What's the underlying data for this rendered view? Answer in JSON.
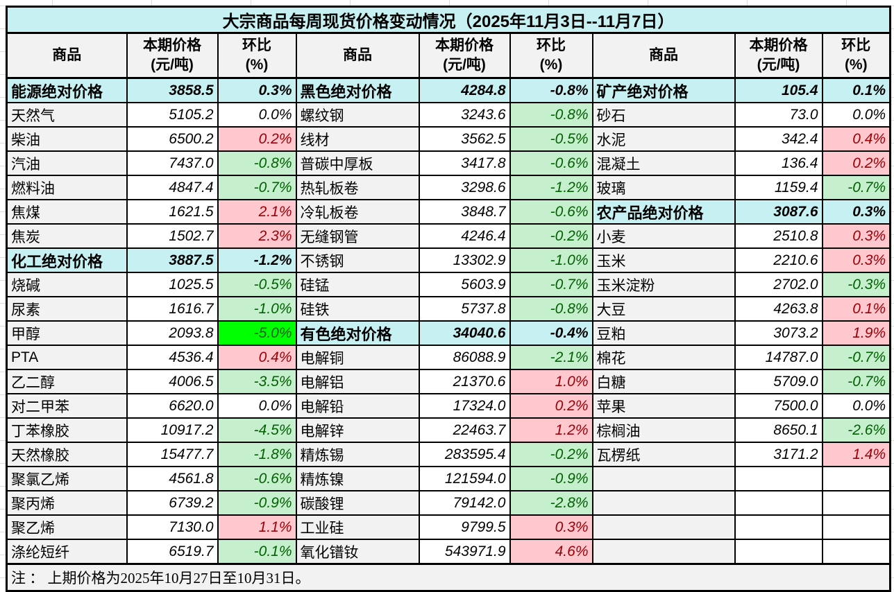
{
  "title": "大宗商品每周现货价格变动情况（2025年11月3日--11月7日）",
  "note": "注 ： 上期价格为2025年10月27日至10月31日。",
  "header": {
    "product": "商品",
    "price_line1": "本期价格",
    "price_line2": "(元/吨)",
    "change_line1": "环比",
    "change_line2": "(%)"
  },
  "colors": {
    "category_bg": "#c6f0f2",
    "name_bg": "#f2f2f2",
    "increase_bg": "#ffc7ce",
    "increase_text": "#9c0006",
    "decrease_bg": "#c6efce",
    "decrease_text": "#006100",
    "big_decrease_bg": "#00ff00",
    "border": "#000000"
  },
  "table": {
    "rows": [
      {
        "cells": [
          {
            "v": "能源绝对价格",
            "c": "cat"
          },
          {
            "v": "3858.5",
            "c": "cnum"
          },
          {
            "v": "0.3%",
            "c": "cpct"
          },
          {
            "v": "黑色绝对价格",
            "c": "cat"
          },
          {
            "v": "4284.8",
            "c": "cnum"
          },
          {
            "v": "-0.8%",
            "c": "cpct"
          },
          {
            "v": "矿产绝对价格",
            "c": "cat"
          },
          {
            "v": "105.4",
            "c": "cnum"
          },
          {
            "v": "0.1%",
            "c": "cpct"
          }
        ]
      },
      {
        "cells": [
          {
            "v": "天然气",
            "c": "name"
          },
          {
            "v": "5105.2",
            "c": "num"
          },
          {
            "v": "0.0%",
            "c": "flat"
          },
          {
            "v": "螺纹钢",
            "c": "name"
          },
          {
            "v": "3243.6",
            "c": "num"
          },
          {
            "v": "-0.8%",
            "c": "down"
          },
          {
            "v": "砂石",
            "c": "name"
          },
          {
            "v": "73.0",
            "c": "num"
          },
          {
            "v": "0.0%",
            "c": "flat"
          }
        ]
      },
      {
        "cells": [
          {
            "v": "柴油",
            "c": "name"
          },
          {
            "v": "6500.2",
            "c": "num"
          },
          {
            "v": "0.2%",
            "c": "up"
          },
          {
            "v": "线材",
            "c": "name"
          },
          {
            "v": "3562.5",
            "c": "num"
          },
          {
            "v": "-0.5%",
            "c": "down"
          },
          {
            "v": "水泥",
            "c": "name"
          },
          {
            "v": "342.4",
            "c": "num"
          },
          {
            "v": "0.4%",
            "c": "up"
          }
        ]
      },
      {
        "cells": [
          {
            "v": "汽油",
            "c": "name"
          },
          {
            "v": "7437.0",
            "c": "num"
          },
          {
            "v": "-0.8%",
            "c": "down"
          },
          {
            "v": "普碳中厚板",
            "c": "name"
          },
          {
            "v": "3417.8",
            "c": "num"
          },
          {
            "v": "-0.6%",
            "c": "down"
          },
          {
            "v": "混凝土",
            "c": "name"
          },
          {
            "v": "136.4",
            "c": "num"
          },
          {
            "v": "0.2%",
            "c": "up"
          }
        ]
      },
      {
        "cells": [
          {
            "v": "燃料油",
            "c": "name"
          },
          {
            "v": "4847.4",
            "c": "num"
          },
          {
            "v": "-0.7%",
            "c": "down"
          },
          {
            "v": "热轧板卷",
            "c": "name"
          },
          {
            "v": "3298.6",
            "c": "num"
          },
          {
            "v": "-1.2%",
            "c": "down"
          },
          {
            "v": "玻璃",
            "c": "name"
          },
          {
            "v": "1159.4",
            "c": "num"
          },
          {
            "v": "-0.7%",
            "c": "down"
          }
        ]
      },
      {
        "cells": [
          {
            "v": "焦煤",
            "c": "name"
          },
          {
            "v": "1621.5",
            "c": "num"
          },
          {
            "v": "2.1%",
            "c": "up"
          },
          {
            "v": "冷轧板卷",
            "c": "name"
          },
          {
            "v": "3848.7",
            "c": "num"
          },
          {
            "v": "-0.6%",
            "c": "down"
          },
          {
            "v": "农产品绝对价格",
            "c": "cat"
          },
          {
            "v": "3087.6",
            "c": "cnum"
          },
          {
            "v": "0.3%",
            "c": "cpct"
          }
        ]
      },
      {
        "cells": [
          {
            "v": "焦炭",
            "c": "name"
          },
          {
            "v": "1502.7",
            "c": "num"
          },
          {
            "v": "2.3%",
            "c": "up"
          },
          {
            "v": "无缝钢管",
            "c": "name"
          },
          {
            "v": "4246.4",
            "c": "num"
          },
          {
            "v": "-0.2%",
            "c": "down"
          },
          {
            "v": "小麦",
            "c": "name"
          },
          {
            "v": "2510.8",
            "c": "num"
          },
          {
            "v": "0.3%",
            "c": "up"
          }
        ]
      },
      {
        "cells": [
          {
            "v": "化工绝对价格",
            "c": "cat"
          },
          {
            "v": "3887.5",
            "c": "cnum"
          },
          {
            "v": "-1.2%",
            "c": "cpct"
          },
          {
            "v": "不锈钢",
            "c": "name"
          },
          {
            "v": "13302.9",
            "c": "num"
          },
          {
            "v": "-1.0%",
            "c": "down"
          },
          {
            "v": "玉米",
            "c": "name"
          },
          {
            "v": "2210.6",
            "c": "num"
          },
          {
            "v": "0.3%",
            "c": "up"
          }
        ]
      },
      {
        "cells": [
          {
            "v": "烧碱",
            "c": "name"
          },
          {
            "v": "1025.5",
            "c": "num"
          },
          {
            "v": "-0.5%",
            "c": "down"
          },
          {
            "v": "硅锰",
            "c": "name"
          },
          {
            "v": "5603.9",
            "c": "num"
          },
          {
            "v": "-0.7%",
            "c": "down"
          },
          {
            "v": "玉米淀粉",
            "c": "name"
          },
          {
            "v": "2702.0",
            "c": "num"
          },
          {
            "v": "-0.3%",
            "c": "down"
          }
        ]
      },
      {
        "cells": [
          {
            "v": "尿素",
            "c": "name"
          },
          {
            "v": "1616.7",
            "c": "num"
          },
          {
            "v": "-1.0%",
            "c": "down"
          },
          {
            "v": "硅铁",
            "c": "name"
          },
          {
            "v": "5737.8",
            "c": "num"
          },
          {
            "v": "-0.8%",
            "c": "down"
          },
          {
            "v": "大豆",
            "c": "name"
          },
          {
            "v": "4263.8",
            "c": "num"
          },
          {
            "v": "0.1%",
            "c": "up"
          }
        ]
      },
      {
        "cells": [
          {
            "v": "甲醇",
            "c": "name"
          },
          {
            "v": "2093.8",
            "c": "num"
          },
          {
            "v": "-5.0%",
            "c": "big"
          },
          {
            "v": "有色绝对价格",
            "c": "cat"
          },
          {
            "v": "34040.6",
            "c": "cnum"
          },
          {
            "v": "-0.4%",
            "c": "cpct"
          },
          {
            "v": "豆粕",
            "c": "name"
          },
          {
            "v": "3073.2",
            "c": "num"
          },
          {
            "v": "1.9%",
            "c": "up"
          }
        ]
      },
      {
        "cells": [
          {
            "v": "PTA",
            "c": "name"
          },
          {
            "v": "4536.4",
            "c": "num"
          },
          {
            "v": "0.4%",
            "c": "up"
          },
          {
            "v": "电解铜",
            "c": "name"
          },
          {
            "v": "86088.9",
            "c": "num"
          },
          {
            "v": "-2.1%",
            "c": "down"
          },
          {
            "v": "棉花",
            "c": "name"
          },
          {
            "v": "14787.0",
            "c": "num"
          },
          {
            "v": "-0.7%",
            "c": "down"
          }
        ]
      },
      {
        "cells": [
          {
            "v": "乙二醇",
            "c": "name"
          },
          {
            "v": "4006.5",
            "c": "num"
          },
          {
            "v": "-3.5%",
            "c": "down"
          },
          {
            "v": "电解铝",
            "c": "name"
          },
          {
            "v": "21370.6",
            "c": "num"
          },
          {
            "v": "1.0%",
            "c": "up"
          },
          {
            "v": "白糖",
            "c": "name"
          },
          {
            "v": "5709.0",
            "c": "num"
          },
          {
            "v": "-0.7%",
            "c": "down"
          }
        ]
      },
      {
        "cells": [
          {
            "v": "对二甲苯",
            "c": "name"
          },
          {
            "v": "6620.0",
            "c": "num"
          },
          {
            "v": "0.0%",
            "c": "flat"
          },
          {
            "v": "电解铅",
            "c": "name"
          },
          {
            "v": "17324.0",
            "c": "num"
          },
          {
            "v": "0.2%",
            "c": "up"
          },
          {
            "v": "苹果",
            "c": "name"
          },
          {
            "v": "7500.0",
            "c": "num"
          },
          {
            "v": "0.0%",
            "c": "flat"
          }
        ]
      },
      {
        "cells": [
          {
            "v": "丁苯橡胶",
            "c": "name"
          },
          {
            "v": "10917.2",
            "c": "num"
          },
          {
            "v": "-4.5%",
            "c": "down"
          },
          {
            "v": "电解锌",
            "c": "name"
          },
          {
            "v": "22463.7",
            "c": "num"
          },
          {
            "v": "1.2%",
            "c": "up"
          },
          {
            "v": "棕榈油",
            "c": "name"
          },
          {
            "v": "8650.1",
            "c": "num"
          },
          {
            "v": "-2.6%",
            "c": "down"
          }
        ]
      },
      {
        "cells": [
          {
            "v": "天然橡胶",
            "c": "name"
          },
          {
            "v": "15477.7",
            "c": "num"
          },
          {
            "v": "-1.8%",
            "c": "down"
          },
          {
            "v": "精炼锡",
            "c": "name"
          },
          {
            "v": "283595.4",
            "c": "num"
          },
          {
            "v": "-0.2%",
            "c": "down"
          },
          {
            "v": "瓦楞纸",
            "c": "name"
          },
          {
            "v": "3171.2",
            "c": "num"
          },
          {
            "v": "1.4%",
            "c": "up"
          }
        ]
      },
      {
        "cells": [
          {
            "v": "聚氯乙烯",
            "c": "name"
          },
          {
            "v": "4561.8",
            "c": "num"
          },
          {
            "v": "-0.6%",
            "c": "down"
          },
          {
            "v": "精炼镍",
            "c": "name"
          },
          {
            "v": "121594.0",
            "c": "num"
          },
          {
            "v": "-0.9%",
            "c": "down"
          },
          {
            "v": "",
            "c": "blankname"
          },
          {
            "v": "",
            "c": "blank"
          },
          {
            "v": "",
            "c": "blank"
          }
        ]
      },
      {
        "cells": [
          {
            "v": "聚丙烯",
            "c": "name"
          },
          {
            "v": "6739.2",
            "c": "num"
          },
          {
            "v": "-0.9%",
            "c": "down"
          },
          {
            "v": "碳酸锂",
            "c": "name"
          },
          {
            "v": "79142.0",
            "c": "num"
          },
          {
            "v": "-2.8%",
            "c": "down"
          },
          {
            "v": "",
            "c": "blankname"
          },
          {
            "v": "",
            "c": "blank"
          },
          {
            "v": "",
            "c": "blank"
          }
        ]
      },
      {
        "cells": [
          {
            "v": "聚乙烯",
            "c": "name"
          },
          {
            "v": "7130.0",
            "c": "num"
          },
          {
            "v": "1.1%",
            "c": "up"
          },
          {
            "v": "工业硅",
            "c": "name"
          },
          {
            "v": "9799.5",
            "c": "num"
          },
          {
            "v": "0.3%",
            "c": "up"
          },
          {
            "v": "",
            "c": "blankname"
          },
          {
            "v": "",
            "c": "blank"
          },
          {
            "v": "",
            "c": "blank"
          }
        ]
      },
      {
        "cells": [
          {
            "v": "涤纶短纤",
            "c": "name"
          },
          {
            "v": "6519.7",
            "c": "num"
          },
          {
            "v": "-0.1%",
            "c": "down"
          },
          {
            "v": "氧化镨钕",
            "c": "name"
          },
          {
            "v": "543971.9",
            "c": "num"
          },
          {
            "v": "4.6%",
            "c": "up"
          },
          {
            "v": "",
            "c": "blankname"
          },
          {
            "v": "",
            "c": "blank"
          },
          {
            "v": "",
            "c": "blank"
          }
        ]
      }
    ]
  }
}
